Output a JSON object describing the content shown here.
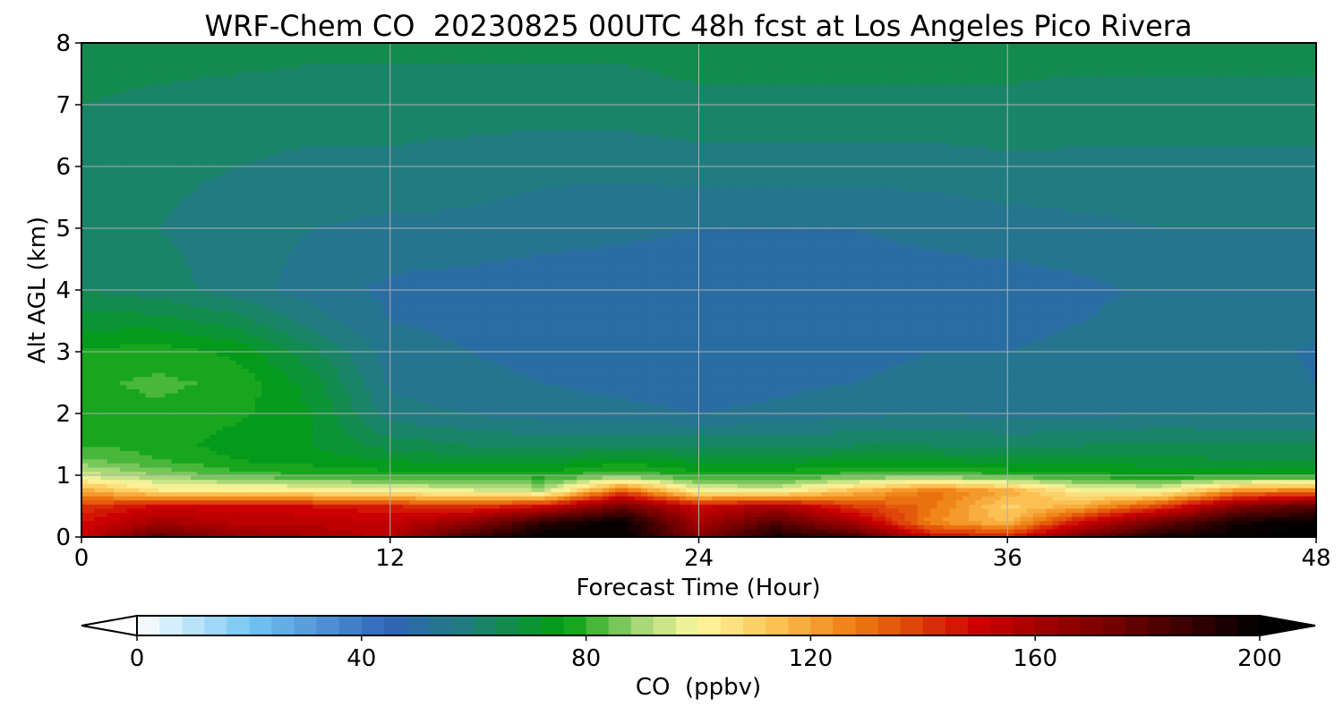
{
  "chart_data": {
    "type": "heatmap",
    "title": "WRF-Chem CO  20230825 00UTC 48h fcst at Los Angeles Pico Rivera",
    "xlabel": "Forecast Time (Hour)",
    "ylabel": "Alt AGL (km)",
    "xlim": [
      0,
      48
    ],
    "ylim": [
      0,
      8
    ],
    "xticks": [
      0,
      12,
      24,
      36,
      48
    ],
    "yticks": [
      0,
      1,
      2,
      3,
      4,
      5,
      6,
      7,
      8
    ],
    "grid": true,
    "x": [
      0,
      3,
      6,
      9,
      12,
      15,
      18,
      21,
      24,
      27,
      30,
      33,
      36,
      39,
      42,
      45,
      48
    ],
    "y": [
      0.0,
      0.25,
      0.5,
      0.75,
      1.0,
      1.25,
      1.5,
      2.0,
      2.5,
      3.0,
      3.5,
      4.0,
      5.0,
      6.0,
      7.0,
      8.0
    ],
    "z": [
      [
        150,
        180,
        165,
        160,
        155,
        185,
        200,
        200,
        170,
        195,
        185,
        150,
        145,
        175,
        195,
        200,
        205
      ],
      [
        148,
        160,
        155,
        155,
        152,
        165,
        190,
        200,
        160,
        180,
        160,
        125,
        115,
        150,
        175,
        195,
        200
      ],
      [
        140,
        150,
        150,
        148,
        145,
        140,
        150,
        175,
        150,
        160,
        140,
        130,
        110,
        120,
        140,
        170,
        180
      ],
      [
        120,
        105,
        105,
        103,
        100,
        98,
        92,
        135,
        100,
        98,
        115,
        130,
        120,
        100,
        100,
        125,
        130
      ],
      [
        95,
        88,
        82,
        80,
        78,
        78,
        78,
        84,
        78,
        78,
        82,
        84,
        80,
        78,
        75,
        76,
        76
      ],
      [
        85,
        80,
        76,
        74,
        72,
        70,
        70,
        74,
        71,
        71,
        72,
        72,
        70,
        70,
        70,
        68,
        68
      ],
      [
        80,
        78,
        74,
        72,
        66,
        64,
        63,
        64,
        63,
        63,
        64,
        64,
        63,
        64,
        65,
        64,
        64
      ],
      [
        78,
        79,
        77,
        72,
        58,
        56,
        54,
        53,
        52,
        53,
        55,
        56,
        55,
        55,
        56,
        56,
        56
      ],
      [
        79,
        81,
        79,
        70,
        55,
        53,
        52,
        51,
        50,
        51,
        52,
        53,
        53,
        53,
        54,
        55,
        52
      ],
      [
        77,
        78,
        75,
        65,
        54,
        52,
        51,
        50,
        49,
        50,
        51,
        52,
        52,
        53,
        54,
        55,
        51
      ],
      [
        70,
        70,
        66,
        58,
        52,
        51,
        50,
        49,
        49,
        49,
        50,
        51,
        51,
        52,
        54,
        55,
        54
      ],
      [
        64,
        62,
        58,
        54,
        51,
        50,
        49,
        49,
        49,
        49,
        50,
        50,
        50,
        51,
        53,
        55,
        55
      ],
      [
        60,
        60,
        58,
        56,
        55,
        55,
        54,
        53,
        52,
        52,
        52,
        53,
        54,
        55,
        56,
        56,
        56
      ],
      [
        62,
        61,
        60,
        59,
        59,
        58,
        57,
        57,
        58,
        58,
        58,
        58,
        59,
        59,
        59,
        59,
        59
      ],
      [
        64,
        63,
        62,
        62,
        62,
        62,
        62,
        62,
        63,
        63,
        63,
        63,
        63,
        62,
        62,
        62,
        62
      ],
      [
        66,
        66,
        66,
        65,
        65,
        65,
        65,
        65,
        66,
        66,
        66,
        66,
        66,
        66,
        66,
        66,
        66
      ]
    ],
    "colorbar": {
      "label": "CO  (ppbv)",
      "min": 0,
      "max": 200,
      "ticks": [
        0,
        40,
        80,
        120,
        160,
        200
      ],
      "extend": "both",
      "colors": [
        {
          "v": 0,
          "c": "#ffffff"
        },
        {
          "v": 20,
          "c": "#74c6f4"
        },
        {
          "v": 45,
          "c": "#2f64b8"
        },
        {
          "v": 60,
          "c": "#1e8076"
        },
        {
          "v": 76,
          "c": "#009e0f"
        },
        {
          "v": 90,
          "c": "#a8d878"
        },
        {
          "v": 100,
          "c": "#fff8a0"
        },
        {
          "v": 115,
          "c": "#fbbd4d"
        },
        {
          "v": 128,
          "c": "#ee7c10"
        },
        {
          "v": 150,
          "c": "#cc0000"
        },
        {
          "v": 175,
          "c": "#6e0000"
        },
        {
          "v": 200,
          "c": "#000000"
        }
      ]
    }
  }
}
